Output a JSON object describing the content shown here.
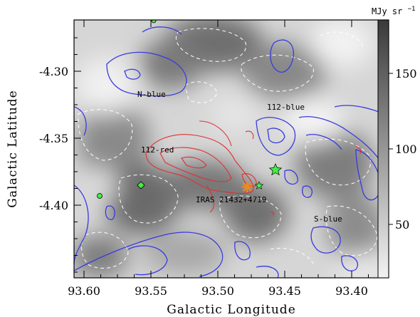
{
  "figure": {
    "x_axis_label": "Galactic Longitude",
    "y_axis_label": "Galactic Latitude",
    "x_ticks": [
      "93.60",
      "93.55",
      "93.50",
      "93.45",
      "93.40"
    ],
    "y_ticks": [
      "-4.30",
      "-4.35",
      "-4.40"
    ],
    "colorbar": {
      "unit_main": "MJy sr",
      "unit_exp": "−1",
      "ticks": [
        "150",
        "100",
        "50"
      ]
    },
    "labels": {
      "n_blue": "N-blue",
      "blue_112": "112-blue",
      "red_112": "112-red",
      "iras": "IRAS 21432+4719",
      "s_blue": "S-blue"
    },
    "colors": {
      "blue_contours": "#3a3ae0",
      "red_contours": "#e03030",
      "dashed_contours": "#ffffff",
      "iras_star": "#f08a1e",
      "green_markers": "#44ee44"
    }
  }
}
